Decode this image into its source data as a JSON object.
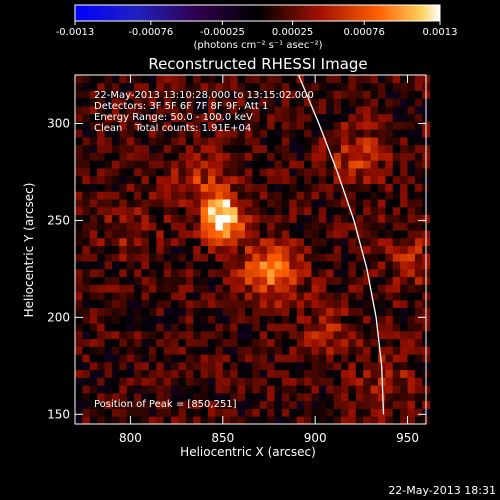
{
  "chart_data": {
    "type": "heatmap",
    "title": "Reconstructed RHESSI Image",
    "xlabel": "Heliocentric X (arcsec)",
    "ylabel": "Heliocentric Y (arcsec)",
    "xlim": [
      770,
      960
    ],
    "ylim": [
      145,
      325
    ],
    "xticks": [
      800,
      850,
      900,
      950
    ],
    "yticks": [
      150,
      200,
      250,
      300
    ],
    "colorbar": {
      "min": -0.0013,
      "max": 0.0013,
      "ticks": [
        "-0.0013",
        "-0.00076",
        "-0.00025",
        "0.00025",
        "0.00076",
        "0.0013"
      ],
      "units_label": "(photons cm⁻² s⁻¹ asec⁻²)"
    },
    "info_lines": [
      "22-May-2013 13:10:28.000 to 13:15:02.000",
      "Detectors: 3F 5F 6F 7F 8F 9F, Att 1",
      "Energy Range: 50.0 - 100.0 keV",
      "Clean    Total counts: 1.91E+04"
    ],
    "peak_text": "Position of Peak = [850,251]",
    "peak": {
      "x": 850,
      "y": 251
    },
    "sources": [
      {
        "x": 850,
        "y": 251,
        "amp": 0.00125
      },
      {
        "x": 876,
        "y": 224,
        "amp": 0.00075
      },
      {
        "x": 836,
        "y": 272,
        "amp": 0.0004
      },
      {
        "x": 922,
        "y": 282,
        "amp": 0.00045
      },
      {
        "x": 952,
        "y": 230,
        "amp": 0.00035
      },
      {
        "x": 905,
        "y": 195,
        "amp": 0.0003
      },
      {
        "x": 800,
        "y": 245,
        "amp": 0.0003
      },
      {
        "x": 938,
        "y": 165,
        "amp": 0.00032
      }
    ],
    "limb_curve": [
      [
        891,
        325
      ],
      [
        902,
        300
      ],
      [
        912,
        275
      ],
      [
        921,
        250
      ],
      [
        928,
        225
      ],
      [
        933,
        200
      ],
      [
        936,
        175
      ],
      [
        937,
        150
      ]
    ]
  },
  "footer": {
    "timestamp": "22-May-2013 18:31"
  },
  "colors": {
    "background": "#000000",
    "text": "#ffffff",
    "limb": "#ffffff"
  }
}
